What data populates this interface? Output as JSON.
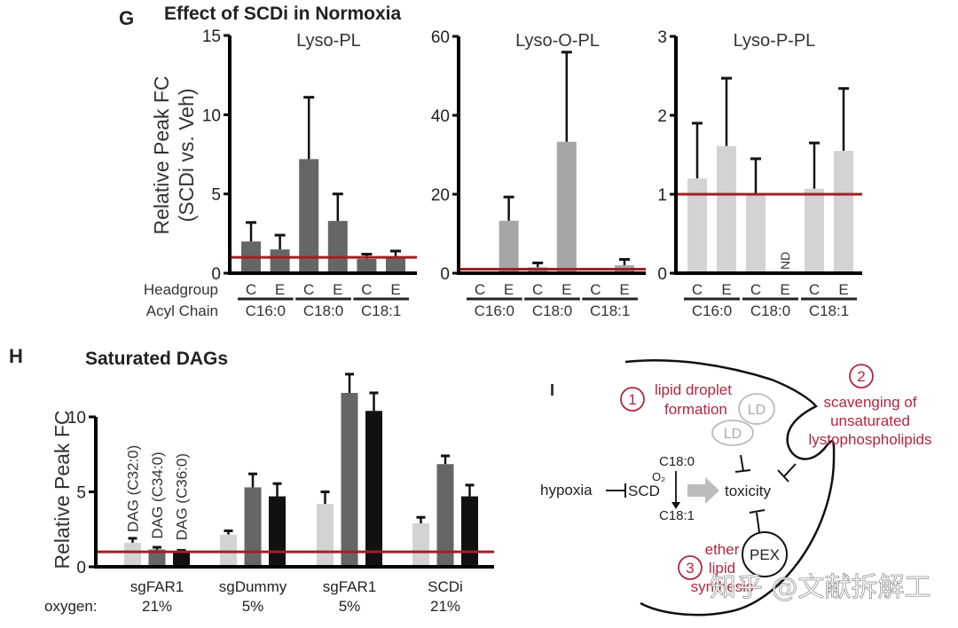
{
  "panel_G": {
    "letter": "G",
    "title": "Effect of SCDi in Normoxia",
    "ylabel_line1": "Relative Peak FC",
    "ylabel_line2": "(SCDi vs. Veh)",
    "row_label_headgroup": "Headgroup",
    "row_label_acyl": "Acyl Chain",
    "nd_label": "ND"
  },
  "panel_H": {
    "letter": "H",
    "title": "Saturated DAGs",
    "ylabel": "Relative Peak FC",
    "oxygen_label": "oxygen:"
  },
  "panel_I": {
    "letter": "I",
    "step1_num": "1",
    "step1_line1": "lipid droplet",
    "step1_line2": "formation",
    "step2_num": "2",
    "step2_line1": "scavenging of",
    "step2_line2": "unsaturated",
    "step2_line3": "lystophospholipids",
    "step3_num": "3",
    "step3_line1": "ether",
    "step3_line2": "lipid",
    "step3_line3": "synthesis",
    "ld_label": "LD",
    "hypoxia": "hypoxia",
    "scd": "SCD",
    "o2": "O₂",
    "c18_0": "C18:0",
    "c18_1": "C18:1",
    "toxicity": "toxicity",
    "pex": "PEX"
  },
  "watermark": "知乎 @文献拆解工",
  "colors": {
    "reference_line": "#a31f24",
    "dark_gray_bar": "#666666",
    "mid_gray_bar": "#a6a6a6",
    "light_gray_bar": "#d3d3d3",
    "black_bar": "#111111",
    "diagram_red": "#b0283e"
  },
  "chart_data": [
    {
      "type": "bar",
      "title": "Lyso-PL",
      "ylabel": "Relative Peak FC (SCDi vs. Veh)",
      "ylim": [
        0,
        15
      ],
      "yticks": [
        0,
        5,
        10,
        15
      ],
      "reference_line": 1,
      "categories": [
        "C16:0 C",
        "C16:0 E",
        "C18:0 C",
        "C18:0 E",
        "C18:1 C",
        "C18:1 E"
      ],
      "headgroups": [
        "C",
        "E",
        "C",
        "E",
        "C",
        "E"
      ],
      "acyl_chains": [
        "C16:0",
        "C18:0",
        "C18:1"
      ],
      "values": [
        2.0,
        1.5,
        7.2,
        3.3,
        0.9,
        1.0
      ],
      "error_upper": [
        3.2,
        2.4,
        11.1,
        5.0,
        1.2,
        1.4
      ],
      "bar_color": "#666666"
    },
    {
      "type": "bar",
      "title": "Lyso-O-PL",
      "ylim": [
        0,
        60
      ],
      "yticks": [
        0,
        20,
        40,
        60
      ],
      "reference_line": 1,
      "categories": [
        "C16:0 C",
        "C16:0 E",
        "C18:0 C",
        "C18:0 E",
        "C18:1 C",
        "C18:1 E"
      ],
      "headgroups": [
        "C",
        "E",
        "C",
        "E",
        "C",
        "E"
      ],
      "acyl_chains": [
        "C16:0",
        "C18:0",
        "C18:1"
      ],
      "values": [
        null,
        13.3,
        1.5,
        33.3,
        null,
        2.0
      ],
      "error_upper": [
        null,
        19.3,
        2.6,
        56.0,
        null,
        3.5
      ],
      "bar_color": "#a6a6a6"
    },
    {
      "type": "bar",
      "title": "Lyso-P-PL",
      "ylim": [
        0,
        3
      ],
      "yticks": [
        0,
        1,
        2,
        3
      ],
      "reference_line": 1,
      "categories": [
        "C16:0 C",
        "C16:0 E",
        "C18:0 C",
        "C18:0 E",
        "C18:1 C",
        "C18:1 E"
      ],
      "headgroups": [
        "C",
        "E",
        "C",
        "E",
        "C",
        "E"
      ],
      "acyl_chains": [
        "C16:0",
        "C18:0",
        "C18:1"
      ],
      "values": [
        1.2,
        1.61,
        1.0,
        null,
        1.07,
        1.55
      ],
      "error_upper": [
        1.9,
        2.47,
        1.45,
        null,
        1.65,
        2.34
      ],
      "annotations": [
        {
          "category": "C18:0 E",
          "text": "ND"
        }
      ],
      "bar_color": "#d3d3d3"
    },
    {
      "type": "bar",
      "title": "Saturated DAGs",
      "ylabel": "Relative Peak FC",
      "ylim": [
        0,
        10
      ],
      "yticks": [
        0,
        5,
        10
      ],
      "reference_line": 1,
      "categories": [
        "sgFAR1",
        "sgDummy",
        "sgFAR1",
        "SCDi"
      ],
      "oxygen": [
        "21%",
        "5%",
        "5%",
        "21%"
      ],
      "series": [
        {
          "name": "DAG (C32:0)",
          "color": "#d3d3d3",
          "values": [
            1.6,
            2.15,
            4.2,
            2.9
          ],
          "error_upper": [
            1.9,
            2.4,
            5.0,
            3.3
          ]
        },
        {
          "name": "DAG (C34:0)",
          "color": "#666666",
          "values": [
            1.15,
            5.3,
            11.6,
            6.85
          ],
          "error_upper": [
            1.3,
            6.2,
            12.85,
            7.4
          ]
        },
        {
          "name": "DAG (C36:0)",
          "color": "#111111",
          "values": [
            1.05,
            4.7,
            10.4,
            4.7
          ],
          "error_upper": [
            1.1,
            5.55,
            11.6,
            5.45
          ]
        }
      ],
      "legend": "rotated labels above first group"
    }
  ]
}
